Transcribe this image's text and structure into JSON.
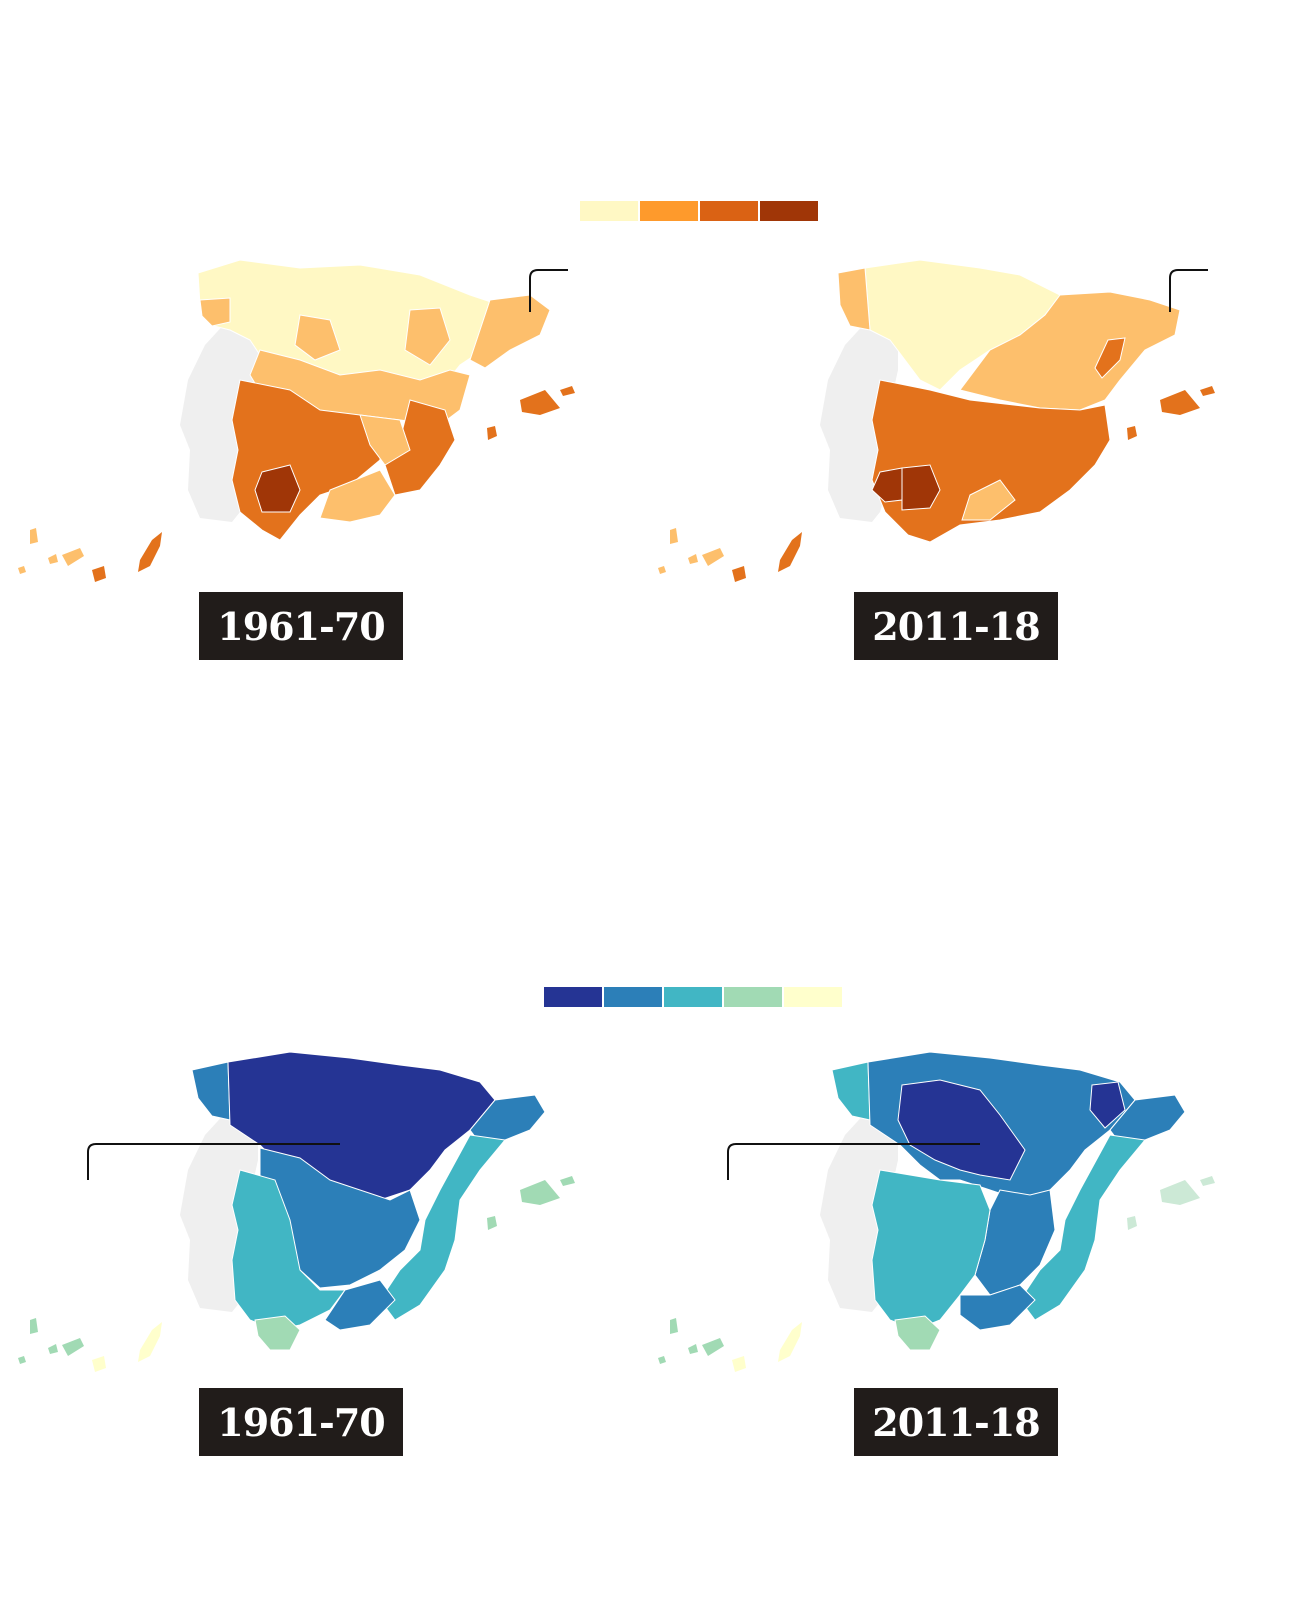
{
  "temperature": {
    "legend_colors": [
      "#fff8c4",
      "#fe9a2c",
      "#da6214",
      "#a03607"
    ],
    "period_labels": [
      "1961-70",
      "2011-18"
    ],
    "icon": "spain-provinces-map"
  },
  "rain": {
    "legend_colors": [
      "#253494",
      "#2c7fb8",
      "#41b6c4",
      "#a1dab4",
      "#ffffcc"
    ],
    "period_labels": [
      "1961-70",
      "2011-18"
    ],
    "icon": "spain-provinces-map"
  },
  "portugal_color": "#efefef"
}
